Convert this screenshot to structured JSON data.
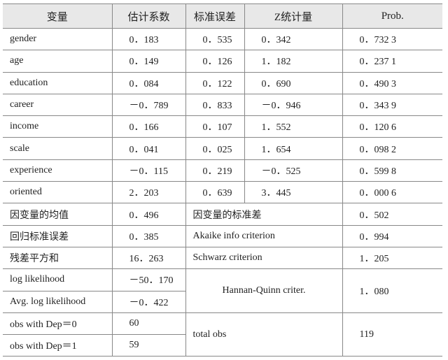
{
  "table": {
    "header": [
      "变量",
      "估计系数",
      "标准误差",
      "Z统计量",
      "Prob."
    ],
    "rows": [
      [
        "gender",
        "0．183",
        "0．535",
        "0．342",
        "0．732 3"
      ],
      [
        "age",
        "0．149",
        "0．126",
        "1．182",
        "0．237 1"
      ],
      [
        "education",
        "0．084",
        "0．122",
        "0．690",
        "0．490 3"
      ],
      [
        "career",
        "－0．789",
        "0．833",
        "－0．946",
        "0．343 9"
      ],
      [
        "income",
        "0．166",
        "0．107",
        "1．552",
        "0．120 6"
      ],
      [
        "scale",
        "0．041",
        "0．025",
        "1．654",
        "0．098 2"
      ],
      [
        "experience",
        "－0．115",
        "0．219",
        "－0．525",
        "0．599 8"
      ],
      [
        "oriented",
        "2．203",
        "0．639",
        "3．445",
        "0．000 6"
      ]
    ],
    "stats": [
      [
        "因变量的均值",
        "0．496",
        "因变量的标准差",
        "0．502"
      ],
      [
        "回归标准误差",
        "0．385",
        "Akaike info criterion",
        "0．994"
      ],
      [
        "残差平方和",
        "16．263",
        "Schwarz criterion",
        "1．205"
      ],
      [
        "log likelihood",
        "－50．170",
        "Hannan-Quinn criter.",
        "1．080"
      ],
      [
        "Avg. log likelihood",
        "－0．422"
      ],
      [
        "obs with Dep＝0",
        "60",
        "total obs",
        "119"
      ],
      [
        "obs with Dep＝1",
        "59"
      ]
    ]
  }
}
